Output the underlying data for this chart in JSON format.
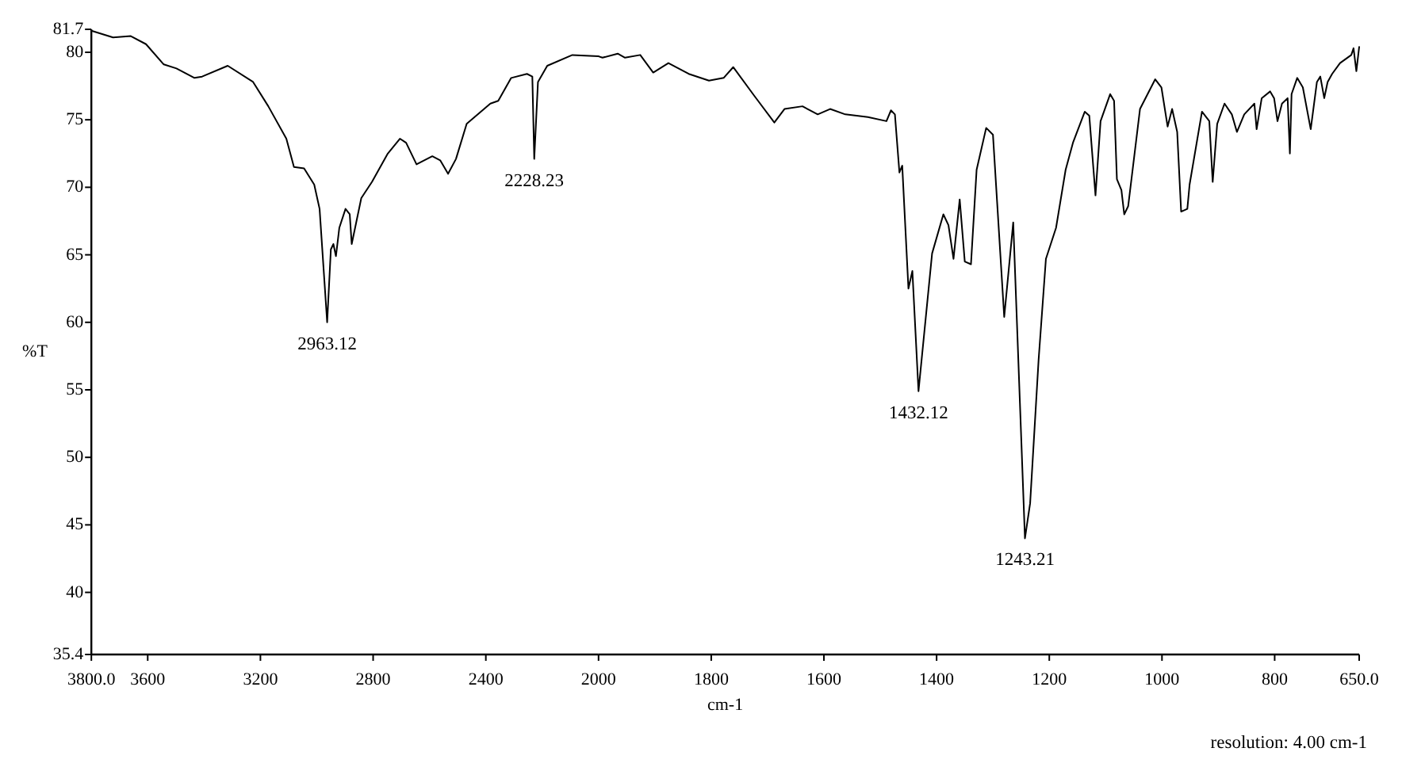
{
  "chart_data": [
    {
      "type": "line",
      "ylabel": "%T",
      "xlim": [
        3800,
        2000
      ],
      "ylim": [
        35.4,
        81.7
      ],
      "xticks": [
        {
          "value": 3800,
          "label": "3800.0"
        },
        3600,
        3200,
        2800,
        2400,
        2000
      ],
      "yticks": [
        35.4,
        40,
        45,
        50,
        55,
        60,
        65,
        70,
        75,
        80,
        81.7
      ],
      "x": [
        3800,
        3723,
        3660,
        3606,
        3543,
        3498,
        3434,
        3407,
        3316,
        3226,
        3172,
        3108,
        3081,
        3045,
        3009,
        2990,
        2963.12,
        2950,
        2941,
        2932,
        2920,
        2898,
        2883,
        2876,
        2860,
        2842,
        2804,
        2748,
        2705,
        2683,
        2646,
        2590,
        2562,
        2534,
        2506,
        2468,
        2384,
        2356,
        2310,
        2254,
        2235,
        2228.23,
        2215,
        2182,
        2093,
        2000
      ],
      "series": [
        {
          "color": "#000000",
          "values": [
            81.6,
            81.1,
            81.2,
            80.6,
            79.1,
            78.8,
            78.1,
            78.2,
            79.0,
            77.8,
            76.0,
            73.6,
            71.5,
            71.4,
            70.2,
            68.4,
            60.0,
            65.4,
            65.8,
            64.9,
            67.0,
            68.4,
            68.0,
            65.8,
            67.4,
            69.2,
            70.4,
            72.5,
            73.6,
            73.3,
            71.7,
            72.3,
            72.0,
            71.0,
            72.1,
            74.7,
            76.2,
            76.4,
            78.1,
            78.4,
            78.2,
            72.1,
            77.8,
            79.0,
            79.8,
            79.7
          ]
        }
      ],
      "annotations": [
        {
          "text": "2963.12",
          "x": 2963.12,
          "y": 60.0
        },
        {
          "text": "2228.23",
          "x": 2228.23,
          "y": 72.1
        }
      ]
    },
    {
      "type": "line",
      "xlabel": "cm-1",
      "xlim": [
        2000,
        650
      ],
      "ylim": [
        35.4,
        81.7
      ],
      "tick_labels": "x",
      "xticks": [
        1800,
        1600,
        1400,
        1200,
        1000,
        800,
        {
          "value": 650,
          "label": "650.0"
        }
      ],
      "x": [
        2000,
        1993,
        1966,
        1953,
        1926,
        1903,
        1876,
        1840,
        1804,
        1778,
        1761,
        1724,
        1688,
        1670,
        1638,
        1611,
        1589,
        1562,
        1522,
        1489,
        1481,
        1474,
        1466,
        1461,
        1450,
        1443,
        1432.12,
        1408,
        1388,
        1379,
        1370,
        1359,
        1350,
        1339,
        1329,
        1312,
        1300,
        1280,
        1264,
        1243.21,
        1234,
        1219,
        1206,
        1188,
        1171,
        1158,
        1137,
        1129,
        1118,
        1109,
        1092,
        1085,
        1080,
        1072,
        1067,
        1060,
        1039,
        1012,
        1001,
        990,
        982,
        973,
        966,
        955,
        951,
        929,
        916,
        910,
        902,
        889,
        876,
        867,
        854,
        836,
        832,
        823,
        808,
        801,
        795,
        787,
        777,
        773,
        770,
        760,
        750,
        736,
        725,
        719,
        712,
        706,
        698,
        684,
        664,
        660,
        655,
        650
      ],
      "series": [
        {
          "color": "#000000",
          "values": [
            79.7,
            79.6,
            79.9,
            79.6,
            79.8,
            78.5,
            79.2,
            78.4,
            77.9,
            78.1,
            78.9,
            76.8,
            74.8,
            75.8,
            76.0,
            75.4,
            75.8,
            75.4,
            75.2,
            74.9,
            75.7,
            75.4,
            71.1,
            71.6,
            62.5,
            63.8,
            54.9,
            65.1,
            68.0,
            67.2,
            64.7,
            69.1,
            64.5,
            64.3,
            71.3,
            74.4,
            73.9,
            60.4,
            67.4,
            44.0,
            46.6,
            57.2,
            64.7,
            67.0,
            71.3,
            73.3,
            75.6,
            75.3,
            69.4,
            74.9,
            76.9,
            76.4,
            70.6,
            69.8,
            68.0,
            68.6,
            75.8,
            78.0,
            77.4,
            74.5,
            75.8,
            74.1,
            68.2,
            68.4,
            70.2,
            75.6,
            74.9,
            70.4,
            74.7,
            76.2,
            75.4,
            74.1,
            75.4,
            76.2,
            74.3,
            76.6,
            77.1,
            76.6,
            74.9,
            76.2,
            76.6,
            72.5,
            76.9,
            78.1,
            77.4,
            74.3,
            77.8,
            78.2,
            76.6,
            77.8,
            78.4,
            79.2,
            79.8,
            80.3,
            78.6,
            80.4
          ]
        }
      ],
      "annotations": [
        {
          "text": "1432.12",
          "x": 1432.12,
          "y": 54.9
        },
        {
          "text": "1243.21",
          "x": 1243.21,
          "y": 44.0
        },
        "resolution: 4.00 cm-1"
      ]
    }
  ]
}
